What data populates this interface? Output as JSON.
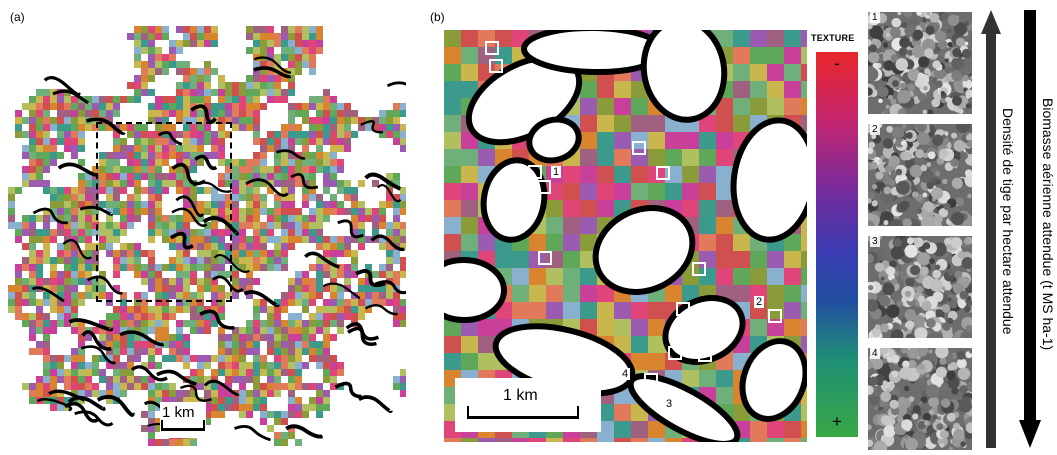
{
  "panel_a": {
    "label": "(a)",
    "scale_label": "1 km"
  },
  "panel_b": {
    "label": "(b)",
    "scale_label": "1 km",
    "site_labels": [
      "1",
      "2",
      "3",
      "4"
    ]
  },
  "colorbar": {
    "title": "TEXTURE",
    "top_label": "-",
    "bottom_label": "+"
  },
  "thumbnails": [
    "1",
    "2",
    "3",
    "4"
  ],
  "axis_labels": {
    "stem_density": "Densité de tige par hectare attendue",
    "biomass": "Biomasse aérienne attendue (t MS ha-1)"
  },
  "palette": [
    "#e0457a",
    "#d9842e",
    "#c9b64c",
    "#8a9b3a",
    "#5fa85a",
    "#3b9a8c",
    "#9a5bb0",
    "#c8409a",
    "#e07a5a",
    "#b0c060",
    "#6fb07a",
    "#a06080",
    "#d05050",
    "#8ab0d0"
  ]
}
